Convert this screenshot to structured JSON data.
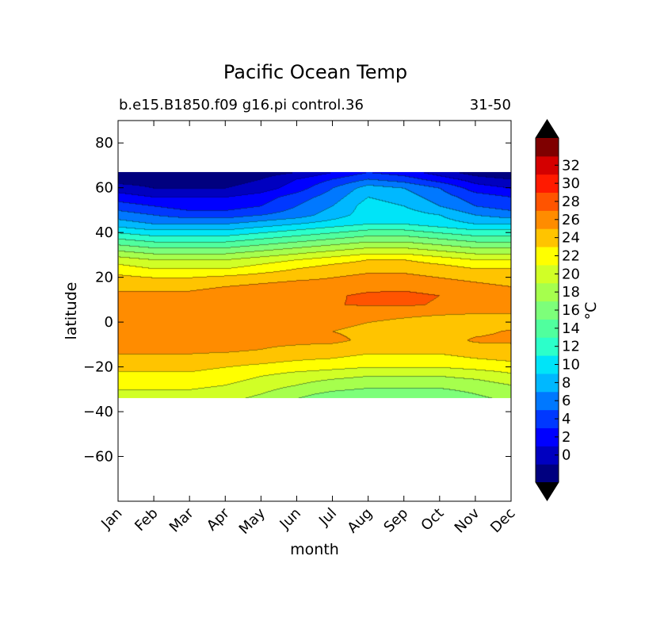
{
  "chart_data": {
    "type": "contour",
    "title": "Pacific Ocean Temp",
    "subtitle_left": "b.e15.B1850.f09 g16.pi control.36",
    "subtitle_right": "31-50",
    "xlabel": "month",
    "ylabel": "latitude",
    "x_categories": [
      "Jan",
      "Feb",
      "Mar",
      "Apr",
      "May",
      "Jun",
      "Jul",
      "Aug",
      "Sep",
      "Oct",
      "Nov",
      "Dec"
    ],
    "y_ticks": [
      80,
      60,
      40,
      20,
      0,
      -20,
      -40,
      -60
    ],
    "y_tick_labels": [
      "80",
      "60",
      "40",
      "20",
      "0",
      "−20",
      "−40",
      "−60"
    ],
    "ylim": [
      -80,
      90
    ],
    "data_lat_range": [
      -34,
      67
    ],
    "months": [
      1,
      2,
      3,
      4,
      5,
      6,
      7,
      8,
      9,
      10,
      11,
      12
    ],
    "latitudes": [
      67,
      64,
      60,
      56,
      52,
      48,
      44,
      40,
      36,
      32,
      28,
      24,
      20,
      16,
      12,
      8,
      4,
      0,
      -4,
      -8,
      -12,
      -16,
      -20,
      -24,
      -28,
      -32,
      -34
    ],
    "temperature_rows": [
      [
        -2,
        -2,
        -2,
        -2,
        -1,
        0,
        2,
        4,
        3,
        1,
        -1,
        -2
      ],
      [
        -1,
        -1,
        -1,
        -1,
        0,
        2,
        4,
        6,
        5,
        3,
        1,
        0
      ],
      [
        1,
        0,
        0,
        0,
        1,
        3,
        6,
        9,
        8,
        6,
        3,
        2
      ],
      [
        3,
        2,
        2,
        2,
        3,
        5,
        7,
        10,
        9,
        7,
        5,
        4
      ],
      [
        5,
        4,
        3,
        3,
        4,
        6,
        8,
        11,
        10,
        8,
        6,
        5
      ],
      [
        7,
        6,
        5,
        5,
        6,
        7,
        9,
        11,
        11,
        10,
        8,
        7
      ],
      [
        9,
        8,
        8,
        8,
        9,
        10,
        11,
        12,
        12,
        11,
        10,
        10
      ],
      [
        12,
        11,
        11,
        11,
        12,
        13,
        14,
        15,
        15,
        14,
        13,
        13
      ],
      [
        15,
        14,
        14,
        14,
        15,
        16,
        17,
        18,
        18,
        17,
        16,
        16
      ],
      [
        18,
        17,
        17,
        17,
        18,
        19,
        20,
        21,
        21,
        20,
        19,
        19
      ],
      [
        21,
        20,
        20,
        20,
        21,
        22,
        23,
        24,
        24,
        23,
        22,
        22
      ],
      [
        23,
        22,
        22,
        22,
        23,
        24,
        25,
        25.5,
        25.5,
        25,
        24,
        24
      ],
      [
        24.5,
        24,
        24,
        24.5,
        25,
        25.5,
        26,
        26.5,
        26.5,
        26,
        25.5,
        25
      ],
      [
        25.5,
        25.5,
        25.5,
        26,
        26.5,
        27,
        27,
        27.5,
        27.5,
        27,
        26.5,
        26
      ],
      [
        26.5,
        26.5,
        26.5,
        27,
        27,
        27.5,
        27.8,
        28.3,
        28.5,
        28,
        27.5,
        27
      ],
      [
        27,
        27,
        27,
        27.5,
        27.5,
        27.8,
        27.9,
        28.2,
        28.3,
        27.8,
        27.2,
        26.8
      ],
      [
        27,
        27,
        27,
        27,
        27,
        27,
        27,
        26.8,
        26.5,
        26.2,
        26,
        26
      ],
      [
        26.5,
        27,
        27,
        27,
        27,
        27,
        26.5,
        26,
        25.5,
        25,
        25,
        25
      ],
      [
        26.5,
        27,
        27,
        27,
        27,
        26.5,
        26,
        25.5,
        25.2,
        25,
        25.5,
        26.2
      ],
      [
        27,
        27,
        27,
        27,
        26.5,
        26.5,
        26.5,
        25.5,
        25,
        25,
        26.3,
        26.5
      ],
      [
        26.5,
        26.5,
        26.5,
        26.5,
        26,
        25.5,
        25,
        24.5,
        24.5,
        24.5,
        25,
        25
      ],
      [
        25.5,
        25.5,
        25.5,
        25,
        24.8,
        24.3,
        24,
        23.5,
        23.5,
        23.5,
        24,
        24.5
      ],
      [
        24.5,
        24.5,
        24.5,
        24,
        23.5,
        23,
        22.5,
        22,
        22,
        22,
        22.5,
        23
      ],
      [
        23.5,
        23.5,
        23.5,
        23,
        22,
        21,
        20.5,
        20,
        20,
        20,
        20.5,
        21.5
      ],
      [
        22.5,
        22.5,
        22.5,
        22,
        21,
        20,
        19,
        18.5,
        18.5,
        18.5,
        19,
        20
      ],
      [
        21.5,
        21.5,
        21.5,
        21,
        20,
        18.5,
        17.5,
        17,
        16.8,
        17,
        18,
        19
      ],
      [
        21,
        21,
        21,
        20.5,
        19.5,
        18,
        17,
        16.5,
        16.3,
        16.5,
        17.5,
        18.5
      ]
    ],
    "levels": [
      -2,
      0,
      2,
      4,
      6,
      8,
      10,
      12,
      14,
      16,
      18,
      20,
      22,
      24,
      26,
      28,
      30,
      32,
      34
    ],
    "level_colors": [
      "#00007f",
      "#0000c0",
      "#0000ff",
      "#0038ff",
      "#0078ff",
      "#00b8ff",
      "#00e4f8",
      "#2cffca",
      "#50ff9e",
      "#7dff7a",
      "#a6ff4d",
      "#d1ff26",
      "#ffff00",
      "#ffc400",
      "#ff8c00",
      "#ff5400",
      "#ff1a00",
      "#d40000",
      "#7f0000"
    ],
    "under_color": "#000000",
    "over_color": "#000000",
    "colorbar": {
      "tick_values": [
        0,
        2,
        4,
        6,
        8,
        10,
        12,
        14,
        16,
        18,
        20,
        22,
        24,
        26,
        28,
        30,
        32
      ],
      "tick_labels": [
        "0",
        "2",
        "4",
        "6",
        "8",
        "10",
        "12",
        "14",
        "16",
        "18",
        "20",
        "22",
        "24",
        "26",
        "28",
        "30",
        "32"
      ],
      "label": "°C",
      "extend": "both"
    },
    "grid": false
  }
}
